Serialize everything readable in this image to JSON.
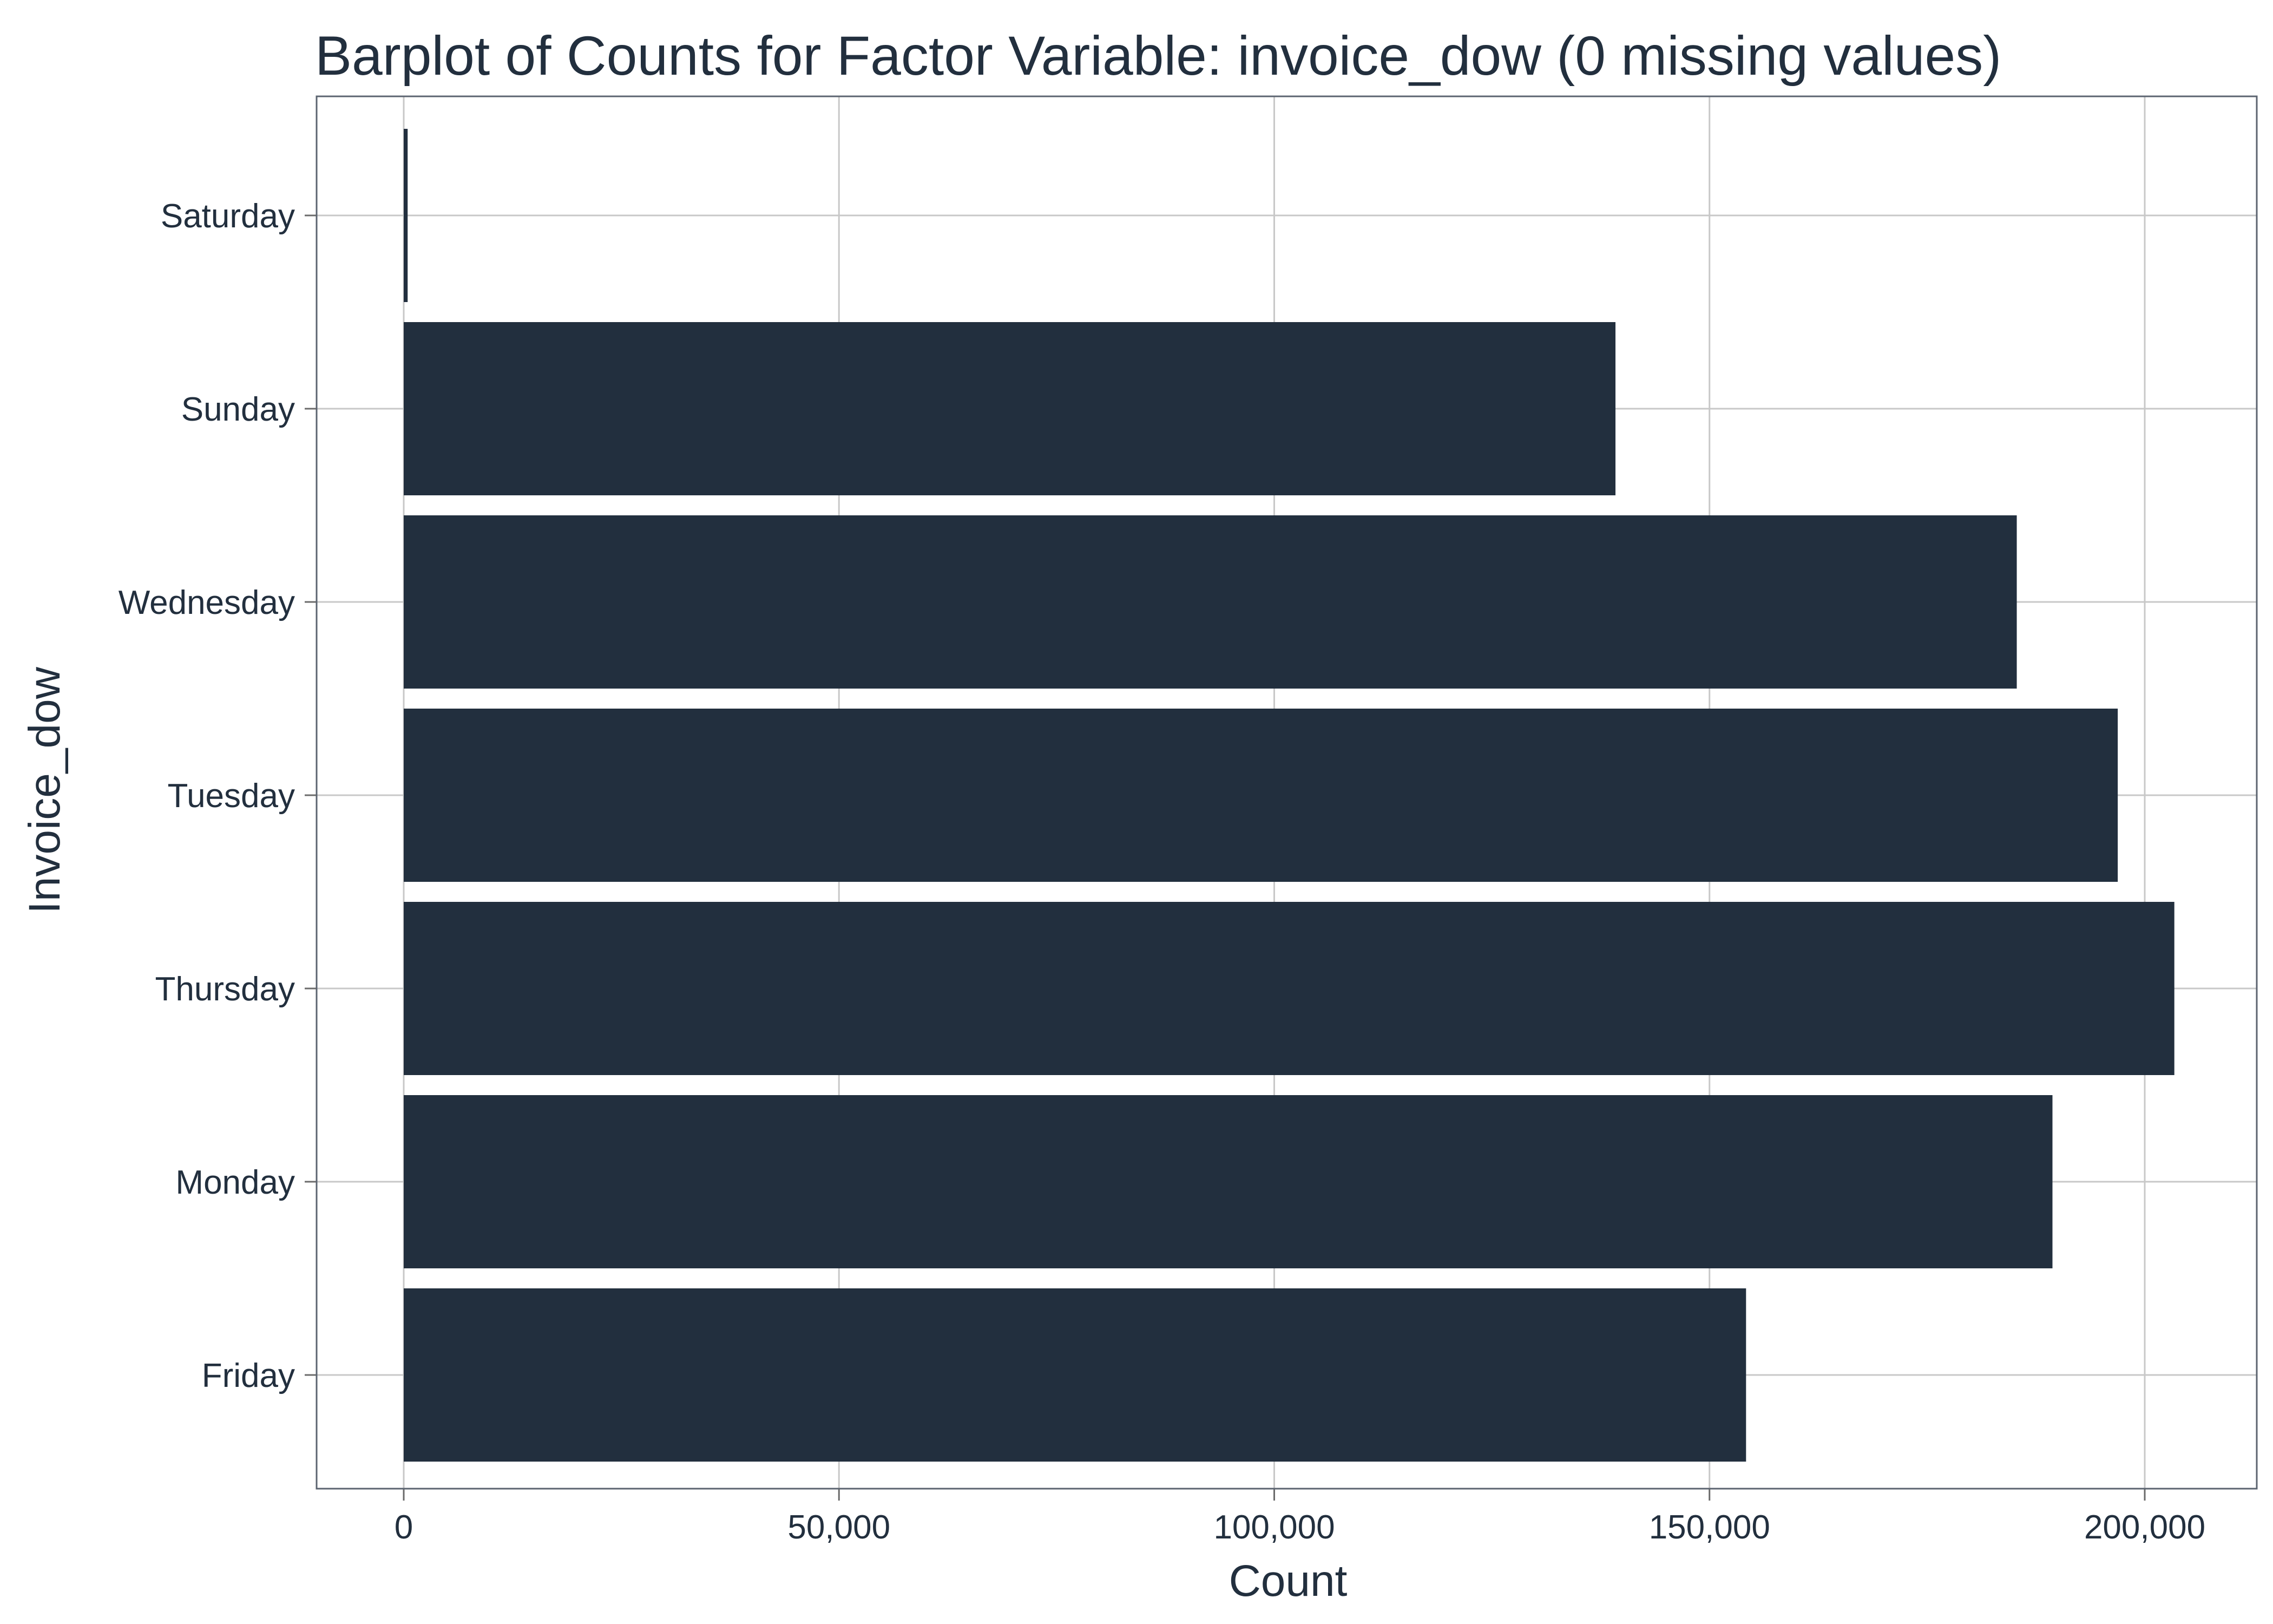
{
  "colors": {
    "bar": "#222f3e",
    "text": "#222f3e",
    "grid": "#c8c8c8",
    "background": "#ffffff"
  },
  "chart_data": {
    "type": "bar",
    "orientation": "horizontal",
    "title": "Barplot of Counts for Factor Variable: invoice_dow (0 missing values)",
    "xlabel": "Count",
    "ylabel": "Invoice_dow",
    "categories": [
      "Saturday",
      "Sunday",
      "Wednesday",
      "Tuesday",
      "Thursday",
      "Monday",
      "Friday"
    ],
    "values": [
      450,
      139200,
      185300,
      196900,
      203400,
      189400,
      154200
    ],
    "xlim": [
      -10000,
      212500
    ],
    "xticks": [
      0,
      50000,
      100000,
      150000,
      200000
    ],
    "xtick_labels": [
      "0",
      "50,000",
      "100,000",
      "150,000",
      "200,000"
    ],
    "grid": true,
    "legend": "none"
  }
}
